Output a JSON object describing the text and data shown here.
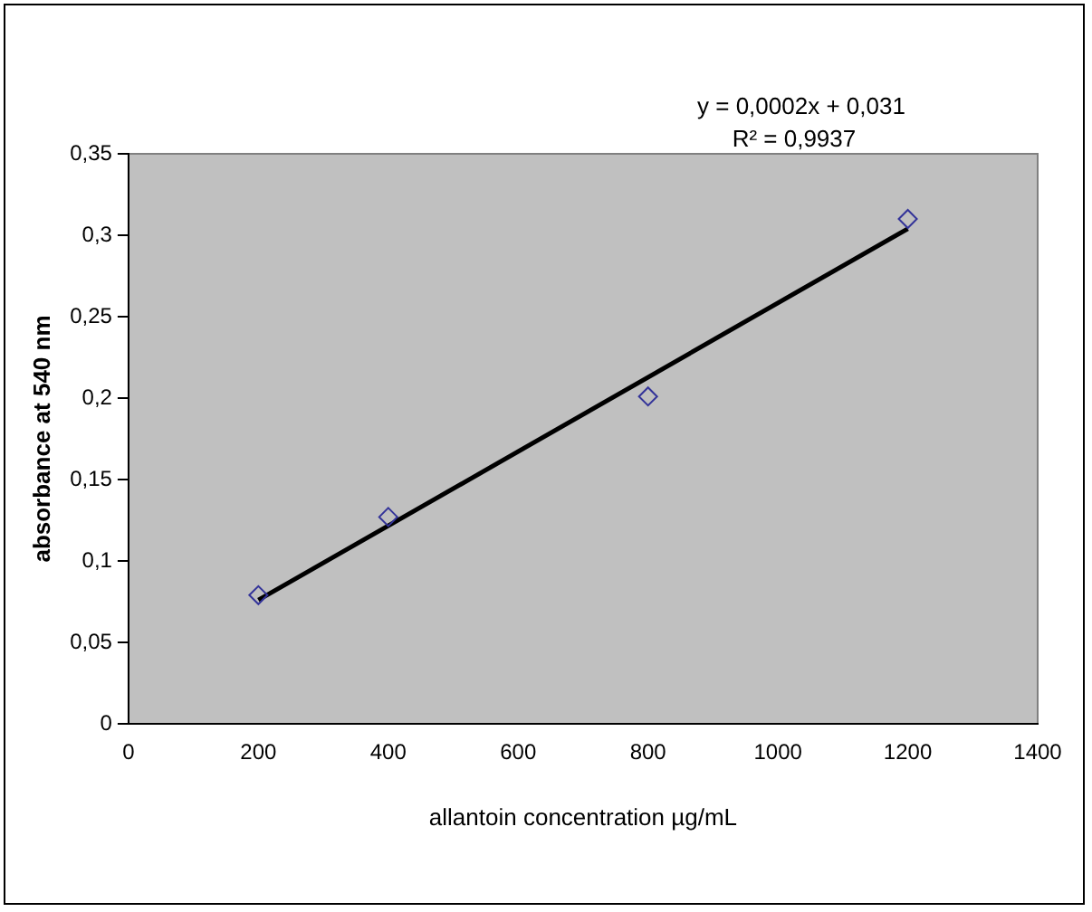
{
  "chart_data": {
    "type": "scatter",
    "xlabel": "allantoin concentration µg/mL",
    "ylabel": "absorbance at 540 nm",
    "x": [
      200,
      400,
      800,
      1200
    ],
    "series": [
      {
        "color": "#333399",
        "marker": "diamond",
        "values": [
          0.079,
          0.127,
          0.201,
          0.31
        ]
      },
      {
        "type": "line",
        "color": "#000000",
        "marker": "none",
        "x": [
          200,
          1200
        ],
        "values": [
          0.076,
          0.304
        ]
      }
    ],
    "xlim": [
      0,
      1400
    ],
    "xticks": [
      0,
      200,
      400,
      600,
      800,
      1000,
      1200,
      1400
    ],
    "ylim": [
      0,
      0.35
    ],
    "yticks": [
      {
        "value": 0,
        "label": "0"
      },
      {
        "value": 0.05,
        "label": "0,05"
      },
      {
        "value": 0.1,
        "label": "0,1"
      },
      {
        "value": 0.15,
        "label": "0,15"
      },
      {
        "value": 0.2,
        "label": "0,2"
      },
      {
        "value": 0.25,
        "label": "0,25"
      },
      {
        "value": 0.3,
        "label": "0,3"
      },
      {
        "value": 0.35,
        "label": "0,35"
      }
    ],
    "grid": false,
    "legend": false,
    "annotations": [
      "y = 0,0002x + 0,031",
      "R² = 0,9937"
    ]
  }
}
